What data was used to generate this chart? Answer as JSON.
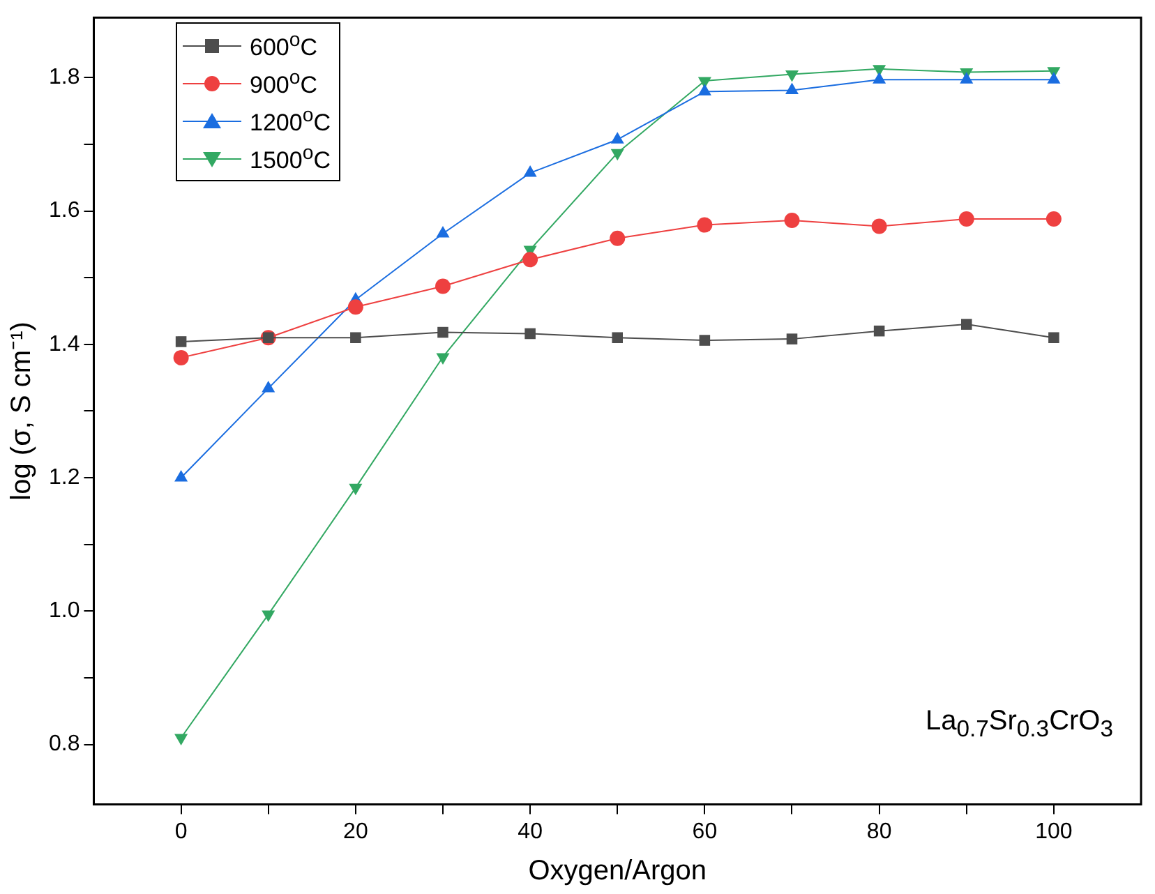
{
  "chart_data": {
    "type": "line",
    "xlabel": "Oxygen/Argon",
    "ylabel": "log (σ, S cm⁻¹)",
    "x": [
      0,
      10,
      20,
      30,
      40,
      50,
      60,
      70,
      80,
      90,
      100
    ],
    "series": [
      {
        "name": "600$^{o}$C",
        "color": "#4d4d4d",
        "marker": "square",
        "values": [
          1.404,
          1.41,
          1.41,
          1.418,
          1.416,
          1.41,
          1.406,
          1.408,
          1.42,
          1.43,
          1.41
        ]
      },
      {
        "name": "900$^{o}$C",
        "color": "#ee4040",
        "marker": "circle",
        "values": [
          1.38,
          1.41,
          1.456,
          1.487,
          1.527,
          1.559,
          1.579,
          1.586,
          1.577,
          1.588,
          1.588
        ]
      },
      {
        "name": "1200$^{o}$C",
        "color": "#1a6de0",
        "marker": "triangle",
        "values": [
          1.2,
          1.334,
          1.467,
          1.566,
          1.657,
          1.707,
          1.779,
          1.781,
          1.797,
          1.797,
          1.797
        ]
      },
      {
        "name": "1500$^{o}$C",
        "color": "#32a862",
        "marker": "triangle-down",
        "values": [
          0.81,
          0.995,
          1.185,
          1.381,
          1.542,
          1.687,
          1.795,
          1.805,
          1.813,
          1.808,
          1.81
        ]
      }
    ],
    "xlim": [
      -10,
      110
    ],
    "xticks": [
      0,
      {
        "value": 10,
        "label": null
      },
      20,
      {
        "value": 30,
        "label": null
      },
      40,
      {
        "value": 50,
        "label": null
      },
      60,
      {
        "value": 70,
        "label": null
      },
      80,
      {
        "value": 90,
        "label": null
      },
      100
    ],
    "ylim": [
      0.71,
      1.89
    ],
    "yticks": [
      {
        "value": 0.8,
        "label": "0.8"
      },
      {
        "value": 0.9,
        "label": null
      },
      {
        "value": 1.0,
        "label": "1.0"
      },
      {
        "value": 1.1,
        "label": null
      },
      {
        "value": 1.2,
        "label": "1.2"
      },
      {
        "value": 1.3,
        "label": null
      },
      {
        "value": 1.4,
        "label": "1.4"
      },
      {
        "value": 1.5,
        "label": null
      },
      {
        "value": 1.6,
        "label": "1.6"
      },
      {
        "value": 1.7,
        "label": null
      },
      {
        "value": 1.8,
        "label": "1.8"
      }
    ],
    "grid": false,
    "legend": "top left",
    "line_style": "solid",
    "annotations": [
      "La$_{0.7}$Sr$_{0.3}$CrO$_{3}$"
    ]
  }
}
